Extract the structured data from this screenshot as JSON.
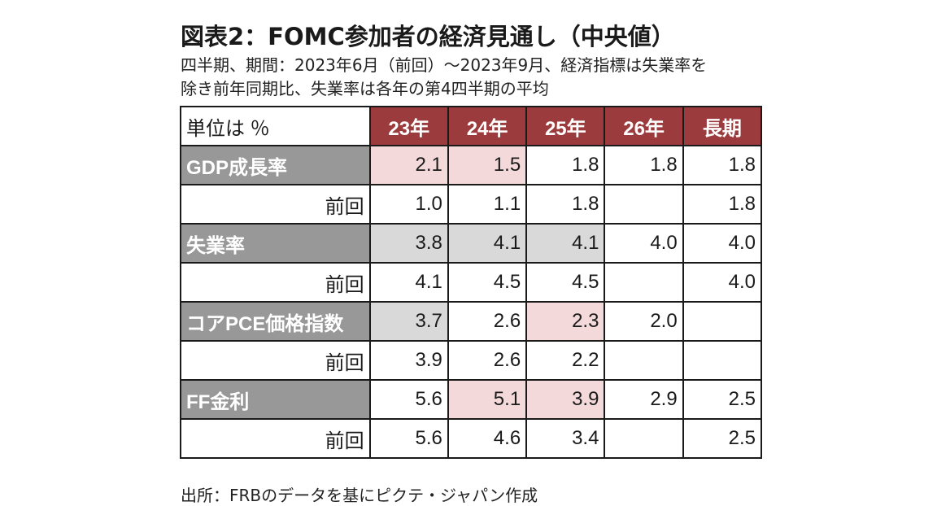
{
  "title": "図表2：FOMC参加者の経済見通し（中央値）",
  "subtitle_line1": "四半期、期間：2023年6月（前回）～2023年9月、経済指標は失業率を",
  "subtitle_line2": "除き前年同期比、失業率は各年の第4四半期の平均",
  "source": "出所：FRBのデータを基にピクテ・ジャパン作成",
  "table": {
    "unit_label": "単位は ％",
    "columns": [
      "23年",
      "24年",
      "25年",
      "26年",
      "長期"
    ],
    "rows": [
      {
        "label": "GDP成長率",
        "type": "main",
        "values": [
          "2.1",
          "1.5",
          "1.8",
          "1.8",
          "1.8"
        ],
        "shading": [
          "pink",
          "pink",
          "",
          "",
          ""
        ]
      },
      {
        "label": "前回",
        "type": "prev",
        "values": [
          "1.0",
          "1.1",
          "1.8",
          "",
          "1.8"
        ],
        "shading": [
          "",
          "",
          "",
          "",
          ""
        ]
      },
      {
        "label": "失業率",
        "type": "main",
        "values": [
          "3.8",
          "4.1",
          "4.1",
          "4.0",
          "4.0"
        ],
        "shading": [
          "gray",
          "gray",
          "gray",
          "",
          ""
        ]
      },
      {
        "label": "前回",
        "type": "prev",
        "values": [
          "4.1",
          "4.5",
          "4.5",
          "",
          "4.0"
        ],
        "shading": [
          "",
          "",
          "",
          "",
          ""
        ]
      },
      {
        "label": "コアPCE価格指数",
        "type": "main",
        "values": [
          "3.7",
          "2.6",
          "2.3",
          "2.0",
          ""
        ],
        "shading": [
          "gray",
          "",
          "pink",
          "",
          ""
        ]
      },
      {
        "label": "前回",
        "type": "prev",
        "values": [
          "3.9",
          "2.6",
          "2.2",
          "",
          ""
        ],
        "shading": [
          "",
          "",
          "",
          "",
          ""
        ]
      },
      {
        "label": "FF金利",
        "type": "main",
        "values": [
          "5.6",
          "5.1",
          "3.9",
          "2.9",
          "2.5"
        ],
        "shading": [
          "",
          "pink",
          "pink",
          "",
          ""
        ]
      },
      {
        "label": "前回",
        "type": "prev",
        "values": [
          "5.6",
          "4.6",
          "3.4",
          "",
          "2.5"
        ],
        "shading": [
          "",
          "",
          "",
          "",
          ""
        ]
      }
    ]
  },
  "colors": {
    "header_bg": "#9c3b3d",
    "label_bg": "#989898",
    "highlight_up": "#f4d9da",
    "highlight_down": "#d9d9d9"
  }
}
